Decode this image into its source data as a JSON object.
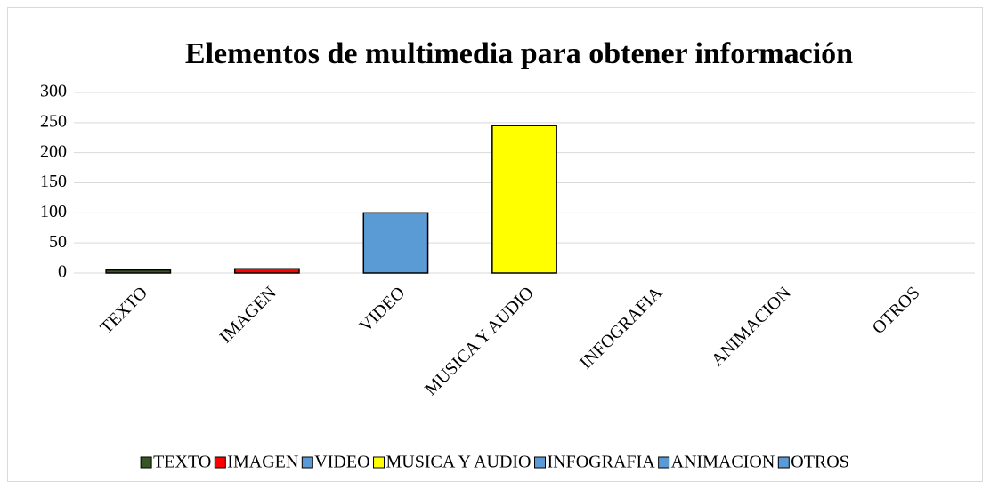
{
  "chart_data": {
    "type": "bar",
    "title": "Elementos de multimedia para obtener información",
    "categories": [
      "TEXTO",
      "IMAGEN",
      "VIDEO",
      "MUSICA Y AUDIO",
      "INFOGRAFIA",
      "ANIMACION",
      "OTROS"
    ],
    "values": [
      5,
      7,
      100,
      245,
      0,
      0,
      0
    ],
    "colors": [
      "#375623",
      "#ff0000",
      "#5b9bd5",
      "#ffff00",
      "#5b9bd5",
      "#5b9bd5",
      "#5b9bd5"
    ],
    "ylim": [
      0,
      300
    ],
    "yticks": [
      0,
      50,
      100,
      150,
      200,
      250,
      300
    ],
    "grid": true,
    "legend": "bottom"
  }
}
